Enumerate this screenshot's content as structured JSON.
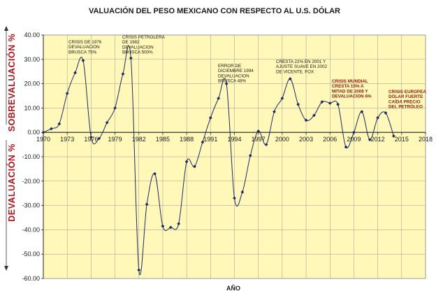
{
  "chart_data": {
    "type": "line",
    "title": "VALUACIÓN DEL PESO MEXICANO CON RESPECTO AL U.S. DÓLAR",
    "xlabel": "AÑO",
    "ylabel_top": "SOBREVALUACIÓN %",
    "ylabel_bottom": "DEVALUACIÓN %",
    "xlim": [
      1970,
      2018
    ],
    "ylim": [
      -60,
      40
    ],
    "x_ticks": [
      "1970",
      "1973",
      "1976",
      "1979",
      "1982",
      "1985",
      "1988",
      "1991",
      "1994",
      "1997",
      "2000",
      "2003",
      "2006",
      "2009",
      "2012",
      "2015",
      "2018"
    ],
    "y_ticks": [
      "40.00",
      "30.00",
      "20.00",
      "10.00",
      "0.00",
      "-10.00",
      "-20.00",
      "-30.00",
      "-40.00",
      "-50.00",
      "-60.00"
    ],
    "grid": true,
    "colors": {
      "plot_bg": "#FFF8B8",
      "grid": "#9a9a9a",
      "line": "#1f2a6b",
      "marker": "#1f2a6b",
      "ylabel": "#b0141b",
      "annotation_red": "#8b1a10"
    },
    "series": [
      {
        "x": [
          1970,
          1971,
          1972,
          1973,
          1974,
          1975,
          1976,
          1977,
          1978,
          1979,
          1980,
          1981,
          1982,
          1983,
          1984,
          1985,
          1986,
          1987,
          1988,
          1989,
          1990,
          1991,
          1992,
          1993,
          1994,
          1995,
          1996,
          1997,
          1998,
          1999,
          2000,
          2001,
          2002,
          2003,
          2004,
          2005,
          2006,
          2007,
          2008,
          2009,
          2010,
          2011,
          2012,
          2013,
          2014
        ],
        "values": [
          0.0,
          1.5,
          3.5,
          16.0,
          24.5,
          29.5,
          -2.0,
          -2.5,
          4.0,
          10.0,
          24.0,
          30.5,
          -56.5,
          -29.5,
          -17.0,
          -38.5,
          -39.0,
          -37.5,
          -12.0,
          -14.0,
          -4.0,
          6.0,
          14.0,
          20.0,
          -27.0,
          -24.5,
          -9.5,
          0.5,
          -5.0,
          8.5,
          14.0,
          22.0,
          11.5,
          5.0,
          7.0,
          12.5,
          12.0,
          11.5,
          -6.0,
          0.0,
          8.5,
          -3.0,
          6.0,
          8.0,
          -1.5
        ]
      }
    ],
    "annotations": [
      {
        "lines": [
          "CRISIS DE 1976",
          "DEVALUACION",
          "BRUSCA 75%"
        ],
        "style": "normal"
      },
      {
        "lines": [
          "CRISIS PETROLERA",
          "DE 1982",
          "DEVALUACION",
          "BRUSCA 500%"
        ],
        "style": "normal"
      },
      {
        "lines": [
          "ERROR DE",
          "DICIEMBRE 1994",
          "DEVALUACION",
          "BRUSCA  48%"
        ],
        "style": "normal"
      },
      {
        "lines": [
          "CRESTA 22% EN 2001 Y",
          "AJUSTE SUAVE EN 2002",
          "DE VICENTE. FOX"
        ],
        "style": "normal"
      },
      {
        "lines": [
          "CRISIS MUNDIAL",
          "CRESTA 15%  A",
          "MITAD DE 2008  Y",
          "DEVALUACION 6%"
        ],
        "style": "red"
      },
      {
        "lines": [
          "CRISIS EUROPEA",
          "DÓLAR FUERTE",
          "CAÍDA PRECIO",
          "DEL PETRÓLEO"
        ],
        "style": "red"
      }
    ]
  }
}
